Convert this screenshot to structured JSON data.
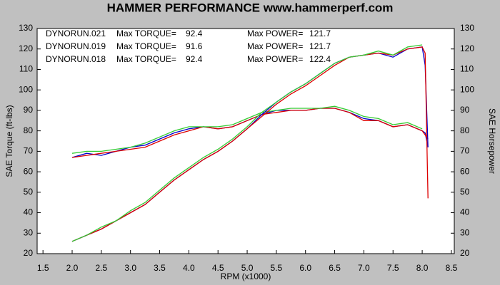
{
  "chart_data": {
    "type": "line",
    "title": "HAMMER PERFORMANCE www.hammerperf.com",
    "xlabel": "RPM (x1000)",
    "ylabel": "SAE Torque (ft-lbs)",
    "y2label": "SAE Horsepower",
    "xlim": [
      1.4,
      8.55
    ],
    "ylim": [
      20,
      130
    ],
    "y2lim": [
      20,
      130
    ],
    "xticks": [
      1.5,
      {
        "value": 2,
        "label": "2.0"
      },
      2.5,
      {
        "value": 3,
        "label": "3.0"
      },
      3.5,
      {
        "value": 4,
        "label": "4.0"
      },
      4.5,
      {
        "value": 5,
        "label": "5.0"
      },
      5.5,
      {
        "value": 6,
        "label": "6.0"
      },
      6.5,
      {
        "value": 7,
        "label": "7.0"
      },
      7.5,
      {
        "value": 8,
        "label": "8.0"
      },
      8.5
    ],
    "yticks": [
      20,
      30,
      40,
      50,
      60,
      70,
      80,
      90,
      100,
      110,
      120,
      130
    ],
    "y2ticks": [
      20,
      30,
      40,
      50,
      60,
      70,
      80,
      90,
      100,
      110,
      120,
      130
    ],
    "legend": [
      {
        "name": "DYNORUN.021",
        "color": "#0000cc",
        "torque_label": "Max TORQUE=",
        "torque": 92.4,
        "power_label": "Max POWER=",
        "power": 121.7,
        "power_color": "#000080"
      },
      {
        "name": "DYNORUN.019",
        "color": "#dd0000",
        "torque_label": "Max TORQUE=",
        "torque": 91.6,
        "power_label": "Max POWER=",
        "power": 121.7,
        "power_color": "#990000"
      },
      {
        "name": "DYNORUN.018",
        "color": "#33cc33",
        "torque_label": "Max TORQUE=",
        "torque": 92.4,
        "power_label": "Max POWER=",
        "power": 122.4,
        "power_color": "#006600"
      }
    ],
    "x": [
      2.0,
      2.25,
      2.5,
      2.75,
      3.0,
      3.25,
      3.5,
      3.75,
      4.0,
      4.25,
      4.5,
      4.75,
      5.0,
      5.25,
      5.5,
      5.75,
      6.0,
      6.25,
      6.5,
      6.75,
      7.0,
      7.25,
      7.5,
      7.75,
      8.0,
      8.05,
      8.1
    ],
    "series": [
      {
        "color": "#0000cc",
        "axis": "y",
        "values": [
          67,
          69,
          68,
          70,
          72,
          73,
          76,
          79,
          81,
          82,
          81,
          82,
          85,
          88,
          90,
          90,
          90,
          91,
          91,
          89,
          86,
          85,
          82,
          83,
          80,
          79,
          72
        ]
      },
      {
        "color": "#dd0000",
        "axis": "y",
        "values": [
          67,
          68,
          69,
          70,
          71,
          72,
          75,
          78,
          80,
          82,
          81,
          82,
          85,
          88,
          89,
          90,
          90,
          91,
          91,
          89,
          85,
          85,
          82,
          83,
          80,
          78,
          76
        ]
      },
      {
        "color": "#33cc33",
        "axis": "y",
        "values": [
          69,
          70,
          70,
          71,
          72,
          74,
          77,
          80,
          82,
          82,
          82,
          83,
          86,
          89,
          90,
          91,
          91,
          91,
          92,
          90,
          87,
          86,
          83,
          84,
          81,
          null,
          null
        ]
      },
      {
        "color": "#0000cc",
        "axis": "y2",
        "values": [
          26,
          29,
          32,
          36,
          40,
          44,
          50,
          56,
          61,
          66,
          70,
          75,
          81,
          88,
          94,
          99,
          103,
          108,
          113,
          116,
          117,
          118,
          116,
          120,
          121,
          112,
          72
        ]
      },
      {
        "color": "#dd0000",
        "axis": "y2",
        "values": [
          26,
          29,
          32,
          36,
          40,
          44,
          50,
          56,
          61,
          66,
          70,
          75,
          81,
          87,
          93,
          98,
          102,
          107,
          112,
          116,
          117,
          118,
          117,
          120,
          121,
          118,
          47
        ]
      },
      {
        "color": "#33cc33",
        "axis": "y2",
        "values": [
          26,
          29,
          33,
          36,
          41,
          45,
          51,
          57,
          62,
          67,
          71,
          76,
          82,
          89,
          94,
          99,
          103,
          108,
          113,
          116,
          117,
          119,
          117,
          121,
          122,
          null,
          null
        ]
      }
    ]
  }
}
